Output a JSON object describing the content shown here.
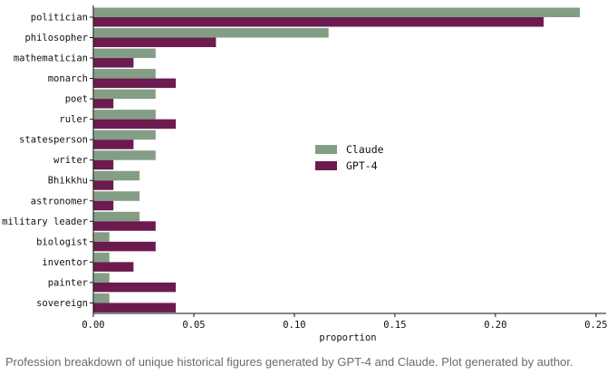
{
  "chart_data": {
    "type": "bar",
    "orientation": "horizontal",
    "categories": [
      "politician",
      "philosopher",
      "mathematician",
      "monarch",
      "poet",
      "ruler",
      "statesperson",
      "writer",
      "Bhikkhu",
      "astronomer",
      "military leader",
      "biologist",
      "inventor",
      "painter",
      "sovereign"
    ],
    "series": [
      {
        "name": "Claude",
        "color": "#849e86",
        "values": [
          0.242,
          0.117,
          0.031,
          0.031,
          0.031,
          0.031,
          0.031,
          0.031,
          0.023,
          0.023,
          0.023,
          0.008,
          0.008,
          0.008,
          0.008
        ]
      },
      {
        "name": "GPT-4",
        "color": "#6b1b4f",
        "values": [
          0.224,
          0.061,
          0.02,
          0.041,
          0.01,
          0.041,
          0.02,
          0.01,
          0.01,
          0.01,
          0.031,
          0.031,
          0.02,
          0.041,
          0.041
        ]
      }
    ],
    "xlabel": "proportion",
    "ylabel": "",
    "xlim": [
      0,
      0.255
    ],
    "xticks": [
      "0.00",
      "0.05",
      "0.10",
      "0.15",
      "0.20",
      "0.25"
    ],
    "legend_position": "center-right"
  },
  "caption": "Profession breakdown of unique historical figures generated by GPT-4 and Claude. Plot generated by author."
}
